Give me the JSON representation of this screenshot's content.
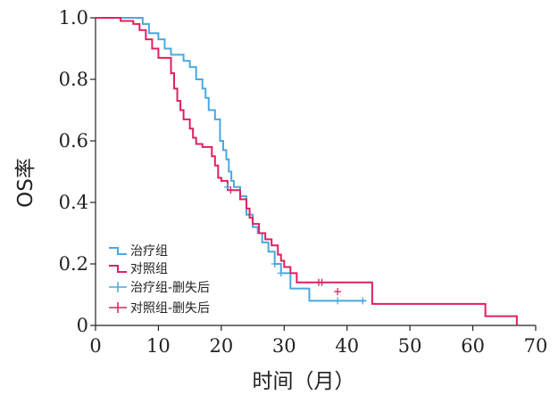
{
  "chart_data": {
    "type": "line",
    "subtype": "kaplan-meier-step",
    "xlabel": "时间（月）",
    "ylabel": "OS率",
    "xlim": [
      0,
      70
    ],
    "ylim": [
      0,
      1.0
    ],
    "x_ticks": [
      0,
      10,
      20,
      30,
      40,
      50,
      60,
      70
    ],
    "x_tick_labels": [
      "0",
      "10",
      "20",
      "30",
      "40",
      "50",
      "60",
      "70"
    ],
    "y_ticks": [
      0,
      0.2,
      0.4,
      0.6,
      0.8,
      1.0
    ],
    "y_tick_labels": [
      "0",
      "0.2",
      "0.4",
      "0.6",
      "0.8",
      "1.0"
    ],
    "grid": false,
    "legend_position": "bottom-left",
    "legend": [
      "治疗组",
      "对照组",
      "治疗组-删失后",
      "对照组-删失后"
    ],
    "series": [
      {
        "name": "治疗组",
        "color": "#4aa8e0",
        "x": [
          0,
          7.5,
          8.5,
          10,
          11,
          12,
          14,
          15,
          16,
          17,
          17.5,
          18,
          19,
          19.8,
          20.3,
          20.8,
          21.2,
          21.6,
          22,
          23,
          24,
          25,
          25.8,
          26.5,
          27.5,
          28.5,
          29.5,
          31,
          34,
          43
        ],
        "y": [
          1.0,
          0.98,
          0.95,
          0.93,
          0.9,
          0.88,
          0.86,
          0.84,
          0.8,
          0.77,
          0.74,
          0.7,
          0.67,
          0.6,
          0.57,
          0.54,
          0.5,
          0.47,
          0.45,
          0.42,
          0.36,
          0.32,
          0.3,
          0.27,
          0.24,
          0.2,
          0.17,
          0.12,
          0.08,
          0.08
        ]
      },
      {
        "name": "对照组",
        "color": "#e0205e",
        "x": [
          0,
          4,
          6,
          7,
          8,
          9,
          10,
          12,
          12.5,
          13,
          13.5,
          14,
          15,
          15.5,
          16,
          17,
          18.5,
          19,
          19.5,
          20,
          21,
          23,
          24,
          24.5,
          25,
          26,
          27,
          28,
          29,
          29.5,
          30,
          31,
          32,
          44,
          62,
          67
        ],
        "y": [
          1.0,
          0.99,
          0.98,
          0.96,
          0.93,
          0.9,
          0.87,
          0.82,
          0.77,
          0.73,
          0.7,
          0.67,
          0.64,
          0.61,
          0.59,
          0.58,
          0.55,
          0.52,
          0.48,
          0.47,
          0.44,
          0.41,
          0.38,
          0.35,
          0.33,
          0.3,
          0.28,
          0.26,
          0.23,
          0.21,
          0.19,
          0.17,
          0.14,
          0.07,
          0.03,
          0.0
        ]
      }
    ],
    "censored": [
      {
        "name": "治疗组-删失后",
        "color": "#4aa8e0",
        "x": [
          21,
          28.5,
          29.5,
          38.5,
          42.5
        ],
        "y": [
          0.45,
          0.2,
          0.17,
          0.08,
          0.08
        ]
      },
      {
        "name": "对照组-删失后",
        "color": "#e0205e",
        "x": [
          21.5,
          35.5,
          36,
          38.5
        ],
        "y": [
          0.44,
          0.14,
          0.14,
          0.11
        ]
      }
    ]
  }
}
